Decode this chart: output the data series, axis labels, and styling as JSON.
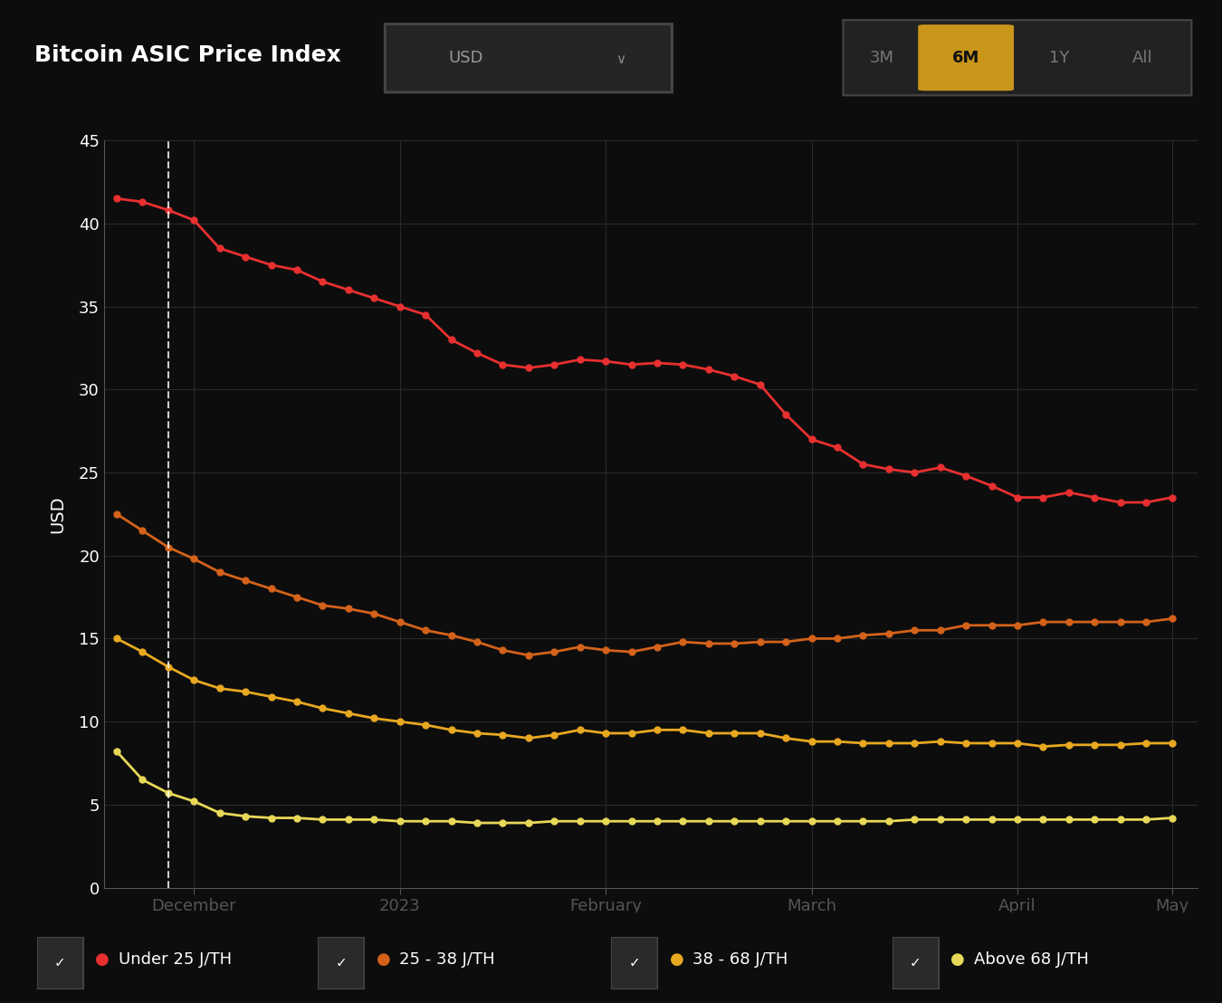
{
  "title": "Bitcoin ASIC Price Index",
  "ylabel": "USD",
  "bg_color": "#0d0d0d",
  "plot_bg_color": "#0d0d0d",
  "grid_color": "#2a2a2a",
  "text_color": "#ffffff",
  "series": {
    "under25": {
      "label": "Under 25 J/TH",
      "color": "#e83030",
      "x": [
        0,
        1,
        2,
        3,
        4,
        5,
        6,
        7,
        8,
        9,
        10,
        11,
        12,
        13,
        14,
        15,
        16,
        17,
        18,
        19,
        20,
        21,
        22,
        23,
        24,
        25,
        26,
        27,
        28,
        29,
        30,
        31,
        32,
        33,
        34,
        35,
        36,
        37,
        38,
        39,
        40,
        41
      ],
      "y": [
        41.5,
        41.3,
        40.8,
        40.2,
        38.5,
        38.0,
        37.5,
        37.2,
        36.5,
        36.0,
        35.5,
        35.0,
        34.5,
        33.0,
        32.2,
        31.5,
        31.3,
        31.5,
        31.8,
        31.7,
        31.5,
        31.6,
        31.5,
        31.2,
        30.8,
        30.3,
        28.5,
        27.0,
        26.5,
        25.5,
        25.2,
        25.0,
        25.3,
        24.8,
        24.2,
        23.5,
        23.5,
        23.8,
        23.5,
        23.2,
        23.2,
        23.5
      ]
    },
    "25to38": {
      "label": "25 - 38 J/TH",
      "color": "#d4621a",
      "x": [
        0,
        1,
        2,
        3,
        4,
        5,
        6,
        7,
        8,
        9,
        10,
        11,
        12,
        13,
        14,
        15,
        16,
        17,
        18,
        19,
        20,
        21,
        22,
        23,
        24,
        25,
        26,
        27,
        28,
        29,
        30,
        31,
        32,
        33,
        34,
        35,
        36,
        37,
        38,
        39,
        40,
        41
      ],
      "y": [
        22.5,
        21.5,
        20.5,
        19.8,
        19.0,
        18.5,
        18.0,
        17.5,
        17.0,
        16.8,
        16.5,
        16.0,
        15.5,
        15.2,
        14.8,
        14.3,
        14.0,
        14.2,
        14.5,
        14.3,
        14.2,
        14.5,
        14.8,
        14.7,
        14.7,
        14.8,
        14.8,
        15.0,
        15.0,
        15.2,
        15.3,
        15.5,
        15.5,
        15.8,
        15.8,
        15.8,
        16.0,
        16.0,
        16.0,
        16.0,
        16.0,
        16.2
      ]
    },
    "38to68": {
      "label": "38 - 68 J/TH",
      "color": "#e8a820",
      "x": [
        0,
        1,
        2,
        3,
        4,
        5,
        6,
        7,
        8,
        9,
        10,
        11,
        12,
        13,
        14,
        15,
        16,
        17,
        18,
        19,
        20,
        21,
        22,
        23,
        24,
        25,
        26,
        27,
        28,
        29,
        30,
        31,
        32,
        33,
        34,
        35,
        36,
        37,
        38,
        39,
        40,
        41
      ],
      "y": [
        15.0,
        14.2,
        13.3,
        12.5,
        12.0,
        11.8,
        11.5,
        11.2,
        10.8,
        10.5,
        10.2,
        10.0,
        9.8,
        9.5,
        9.3,
        9.2,
        9.0,
        9.2,
        9.5,
        9.3,
        9.3,
        9.5,
        9.5,
        9.3,
        9.3,
        9.3,
        9.0,
        8.8,
        8.8,
        8.7,
        8.7,
        8.7,
        8.8,
        8.7,
        8.7,
        8.7,
        8.5,
        8.6,
        8.6,
        8.6,
        8.7,
        8.7
      ]
    },
    "above68": {
      "label": "Above 68 J/TH",
      "color": "#e8d858",
      "x": [
        0,
        1,
        2,
        3,
        4,
        5,
        6,
        7,
        8,
        9,
        10,
        11,
        12,
        13,
        14,
        15,
        16,
        17,
        18,
        19,
        20,
        21,
        22,
        23,
        24,
        25,
        26,
        27,
        28,
        29,
        30,
        31,
        32,
        33,
        34,
        35,
        36,
        37,
        38,
        39,
        40,
        41
      ],
      "y": [
        8.2,
        6.5,
        5.7,
        5.2,
        4.5,
        4.3,
        4.2,
        4.2,
        4.1,
        4.1,
        4.1,
        4.0,
        4.0,
        4.0,
        3.9,
        3.9,
        3.9,
        4.0,
        4.0,
        4.0,
        4.0,
        4.0,
        4.0,
        4.0,
        4.0,
        4.0,
        4.0,
        4.0,
        4.0,
        4.0,
        4.0,
        4.1,
        4.1,
        4.1,
        4.1,
        4.1,
        4.1,
        4.1,
        4.1,
        4.1,
        4.1,
        4.2
      ]
    }
  },
  "x_ticks": {
    "positions": [
      3,
      11,
      19,
      27,
      35,
      41
    ],
    "labels": [
      "December",
      "2023",
      "February",
      "March",
      "April",
      "May"
    ]
  },
  "dashed_line_x": 2,
  "ylim": [
    0,
    45
  ],
  "yticks": [
    0,
    5,
    10,
    15,
    20,
    25,
    30,
    35,
    40,
    45
  ],
  "header_bg": "#1a1a1a",
  "btn_container_bg": "#222222",
  "usd_btn_bg": "#222222",
  "active_btn_color": "#c9961a",
  "inactive_btn_color": "#555555",
  "checkbox_bg": "#2a2a2a",
  "legend_dot_size": 13,
  "legend_text_size": 13
}
